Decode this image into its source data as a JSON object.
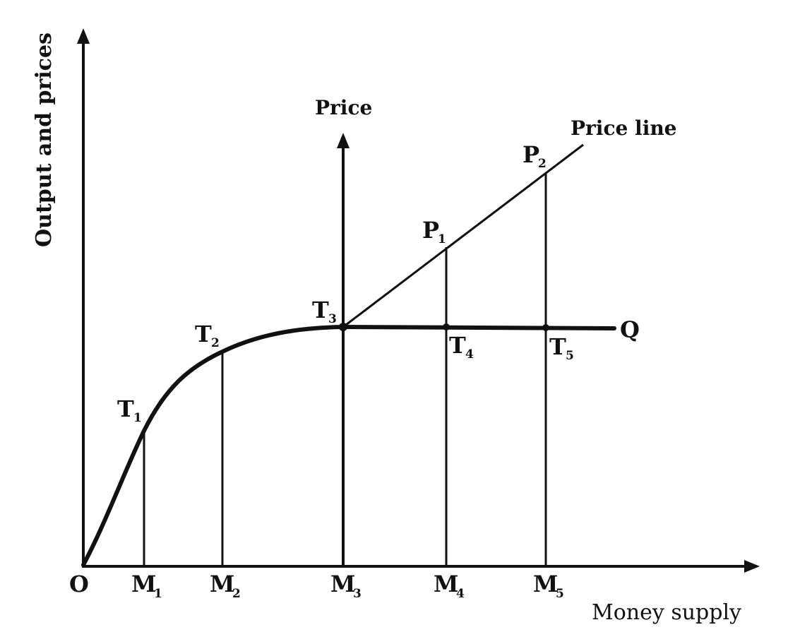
{
  "axes": {
    "x_title": "Money supply",
    "y_title": "Output and prices",
    "origin": "O",
    "price_axis_title": "Price",
    "price_line_label": "Price line",
    "output_curve_label": "Q"
  },
  "x_ticks": [
    {
      "base": "M",
      "sub": "1"
    },
    {
      "base": "M",
      "sub": "2"
    },
    {
      "base": "M",
      "sub": "3"
    },
    {
      "base": "M",
      "sub": "4"
    },
    {
      "base": "M",
      "sub": "5"
    }
  ],
  "curve_points": [
    {
      "base": "T",
      "sub": "1"
    },
    {
      "base": "T",
      "sub": "2"
    },
    {
      "base": "T",
      "sub": "3"
    },
    {
      "base": "T",
      "sub": "4"
    },
    {
      "base": "T",
      "sub": "5"
    }
  ],
  "price_points": [
    {
      "base": "P",
      "sub": "1"
    },
    {
      "base": "P",
      "sub": "2"
    }
  ],
  "colors": {
    "ink": "#111111",
    "background": "#ffffff"
  }
}
